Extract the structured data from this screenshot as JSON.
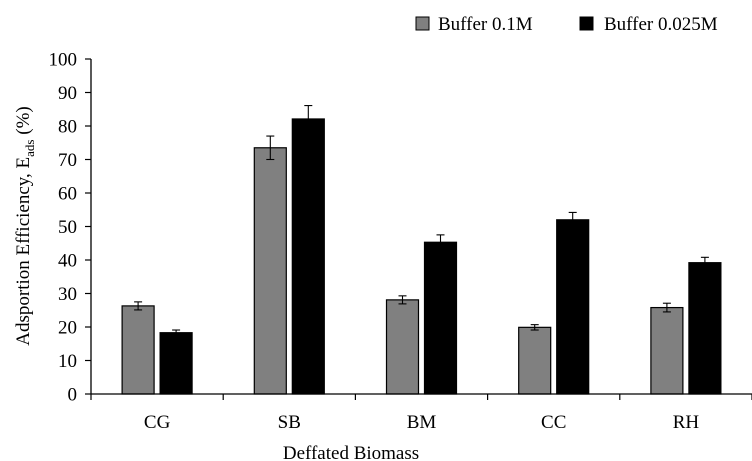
{
  "chart_data": {
    "type": "bar",
    "title": "",
    "xlabel": "Deffated Biomass",
    "ylabel": {
      "prefix": "Adsportion Efficiency, E",
      "subscript": "ads",
      "suffix": " (%)"
    },
    "ylim": [
      0,
      100
    ],
    "yticks": [
      0,
      10,
      20,
      30,
      40,
      50,
      60,
      70,
      80,
      90,
      100
    ],
    "categories": [
      "CG",
      "SB",
      "BM",
      "CC",
      "RH"
    ],
    "series": [
      {
        "name": "Buffer 0.1M",
        "color": "#808080",
        "values": [
          26.3,
          73.5,
          28.1,
          19.9,
          25.8
        ],
        "errors": [
          1.2,
          3.5,
          1.2,
          0.8,
          1.3
        ]
      },
      {
        "name": "Buffer 0.025M",
        "color": "#000000",
        "values": [
          18.3,
          82.1,
          45.3,
          52.0,
          39.2
        ],
        "errors": [
          0.8,
          4.0,
          2.2,
          2.2,
          1.6
        ]
      }
    ],
    "legend_position": "top-right",
    "grid": false
  }
}
